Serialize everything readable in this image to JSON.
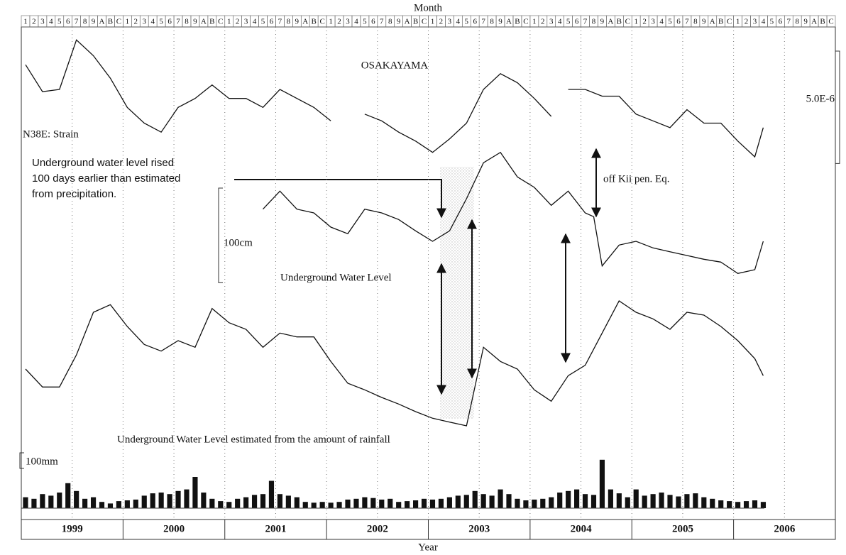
{
  "chart_data": {
    "type": "line",
    "title": "OSAKAYAMA",
    "x_label_top": "Month",
    "xlabel": "Year",
    "xlim": [
      "1999-01",
      "2006-12"
    ],
    "month_labels": [
      "1",
      "2",
      "3",
      "4",
      "5",
      "6",
      "7",
      "8",
      "9",
      "A",
      "B",
      "C"
    ],
    "years": [
      1999,
      2000,
      2001,
      2002,
      2003,
      2004,
      2005,
      2006
    ],
    "grid": true,
    "series": [
      {
        "name": "N38E: Strain",
        "type": "line",
        "color": "#111111",
        "ylim": [
          0,
          6e-06
        ],
        "scale_bar": {
          "value": 5e-06,
          "label": "5.0E-6"
        },
        "x": [
          "1999-01",
          "1999-03",
          "1999-05",
          "1999-07",
          "1999-09",
          "1999-11",
          "2000-01",
          "2000-03",
          "2000-05",
          "2000-07",
          "2000-09",
          "2000-11",
          "2001-01",
          "2001-03",
          "2001-05",
          "2001-07",
          "2001-09",
          "2001-11",
          "2002-01",
          "2002-03",
          "2002-05",
          "2002-07",
          "2002-09",
          "2002-11",
          "2003-01",
          "2003-03",
          "2003-05",
          "2003-07",
          "2003-09",
          "2003-11",
          "2004-01",
          "2004-03",
          "2004-04",
          "2004-05",
          "2004-07",
          "2004-09",
          "2004-11",
          "2005-01",
          "2005-03",
          "2005-05",
          "2005-07",
          "2005-09",
          "2005-11",
          "2006-01",
          "2006-03",
          "2006-04"
        ],
        "values": [
          4.7e-06,
          3.5e-06,
          3.6e-06,
          5.8e-06,
          5.1e-06,
          4.1e-06,
          2.8e-06,
          2.1e-06,
          1.7e-06,
          2.8e-06,
          3.2e-06,
          3.8e-06,
          3.2e-06,
          3.2e-06,
          2.8e-06,
          3.6e-06,
          3.2e-06,
          2.8e-06,
          2.2e-06,
          null,
          2.5e-06,
          2.2e-06,
          1.7e-06,
          1.3e-06,
          8e-07,
          1.4e-06,
          2.1e-06,
          3.6e-06,
          4.3e-06,
          3.9e-06,
          3.2e-06,
          2.4e-06,
          null,
          3.6e-06,
          3.6e-06,
          3.3e-06,
          3.3e-06,
          2.5e-06,
          2.2e-06,
          1.9e-06,
          2.7e-06,
          2.1e-06,
          2.1e-06,
          1.3e-06,
          6e-07,
          1.9e-06
        ]
      },
      {
        "name": "Underground Water Level",
        "type": "line",
        "color": "#111111",
        "ylim": [
          0,
          150
        ],
        "scale_bar": {
          "value": 100,
          "label": "100cm"
        },
        "x": [
          "2001-05",
          "2001-07",
          "2001-09",
          "2001-11",
          "2002-01",
          "2002-03",
          "2002-05",
          "2002-07",
          "2002-09",
          "2002-11",
          "2003-01",
          "2003-03",
          "2003-05",
          "2003-07",
          "2003-09",
          "2003-11",
          "2004-01",
          "2004-03",
          "2004-05",
          "2004-07",
          "2004-08",
          "2004-09",
          "2004-11",
          "2005-01",
          "2005-03",
          "2005-05",
          "2005-07",
          "2005-09",
          "2005-11",
          "2006-01",
          "2006-03",
          "2006-04"
        ],
        "values": [
          79,
          98,
          79,
          75,
          60,
          53,
          79,
          75,
          68,
          56,
          45,
          56,
          90,
          128,
          139,
          113,
          102,
          83,
          98,
          75,
          71,
          19,
          41,
          45,
          38,
          34,
          30,
          26,
          23,
          11,
          15,
          45
        ]
      },
      {
        "name": "Underground Water Level estimated from the amount of rainfall",
        "type": "line",
        "color": "#111111",
        "ylim": [
          0,
          165
        ],
        "x": [
          "1999-01",
          "1999-03",
          "1999-05",
          "1999-07",
          "1999-09",
          "1999-11",
          "2000-01",
          "2000-03",
          "2000-05",
          "2000-07",
          "2000-09",
          "2000-11",
          "2001-01",
          "2001-03",
          "2001-05",
          "2001-07",
          "2001-09",
          "2001-11",
          "2002-01",
          "2002-03",
          "2002-05",
          "2002-07",
          "2002-09",
          "2002-11",
          "2003-01",
          "2003-03",
          "2003-05",
          "2003-07",
          "2003-09",
          "2003-11",
          "2004-01",
          "2004-03",
          "2004-05",
          "2004-07",
          "2004-09",
          "2004-11",
          "2005-01",
          "2005-03",
          "2005-05",
          "2005-07",
          "2005-09",
          "2005-11",
          "2006-01",
          "2006-03",
          "2006-04"
        ],
        "values": [
          75,
          56,
          56,
          90,
          135,
          143,
          120,
          101,
          94,
          105,
          98,
          139,
          124,
          117,
          98,
          113,
          109,
          109,
          83,
          60,
          53,
          45,
          38,
          30,
          23,
          19,
          15,
          98,
          83,
          75,
          53,
          41,
          68,
          79,
          113,
          147,
          135,
          128,
          117,
          135,
          132,
          120,
          105,
          86,
          68
        ]
      },
      {
        "type": "bar",
        "color": "#111111",
        "ylim": [
          0,
          350
        ],
        "scale_bar": {
          "value": 100,
          "label": "100mm"
        },
        "x": [
          "1999-01",
          "1999-02",
          "1999-03",
          "1999-04",
          "1999-05",
          "1999-06",
          "1999-07",
          "1999-08",
          "1999-09",
          "1999-10",
          "1999-11",
          "1999-12",
          "2000-01",
          "2000-02",
          "2000-03",
          "2000-04",
          "2000-05",
          "2000-06",
          "2000-07",
          "2000-08",
          "2000-09",
          "2000-10",
          "2000-11",
          "2000-12",
          "2001-01",
          "2001-02",
          "2001-03",
          "2001-04",
          "2001-05",
          "2001-06",
          "2001-07",
          "2001-08",
          "2001-09",
          "2001-10",
          "2001-11",
          "2001-12",
          "2002-01",
          "2002-02",
          "2002-03",
          "2002-04",
          "2002-05",
          "2002-06",
          "2002-07",
          "2002-08",
          "2002-09",
          "2002-10",
          "2002-11",
          "2002-12",
          "2003-01",
          "2003-02",
          "2003-03",
          "2003-04",
          "2003-05",
          "2003-06",
          "2003-07",
          "2003-08",
          "2003-09",
          "2003-10",
          "2003-11",
          "2003-12",
          "2004-01",
          "2004-02",
          "2004-03",
          "2004-04",
          "2004-05",
          "2004-06",
          "2004-07",
          "2004-08",
          "2004-09",
          "2004-10",
          "2004-11",
          "2004-12",
          "2005-01",
          "2005-02",
          "2005-03",
          "2005-04",
          "2005-05",
          "2005-06",
          "2005-07",
          "2005-08",
          "2005-09",
          "2005-10",
          "2005-11",
          "2005-12",
          "2006-01",
          "2006-02",
          "2006-03",
          "2006-04"
        ],
        "values": [
          70,
          60,
          90,
          80,
          100,
          160,
          110,
          60,
          70,
          40,
          30,
          45,
          50,
          55,
          80,
          95,
          100,
          90,
          110,
          120,
          200,
          100,
          60,
          45,
          40,
          60,
          70,
          85,
          90,
          175,
          90,
          80,
          70,
          40,
          35,
          40,
          35,
          40,
          55,
          60,
          70,
          65,
          55,
          60,
          40,
          45,
          50,
          60,
          55,
          60,
          70,
          80,
          85,
          110,
          90,
          80,
          120,
          90,
          60,
          50,
          55,
          60,
          70,
          100,
          110,
          120,
          90,
          85,
          310,
          120,
          95,
          70,
          120,
          80,
          90,
          100,
          85,
          75,
          90,
          95,
          70,
          60,
          50,
          45,
          40,
          45,
          50,
          40
        ]
      }
    ],
    "annotations": [
      "Underground water level rised",
      "100 days earlier than estimated",
      "from precipitation.",
      "off Kii pen. Eq."
    ]
  }
}
